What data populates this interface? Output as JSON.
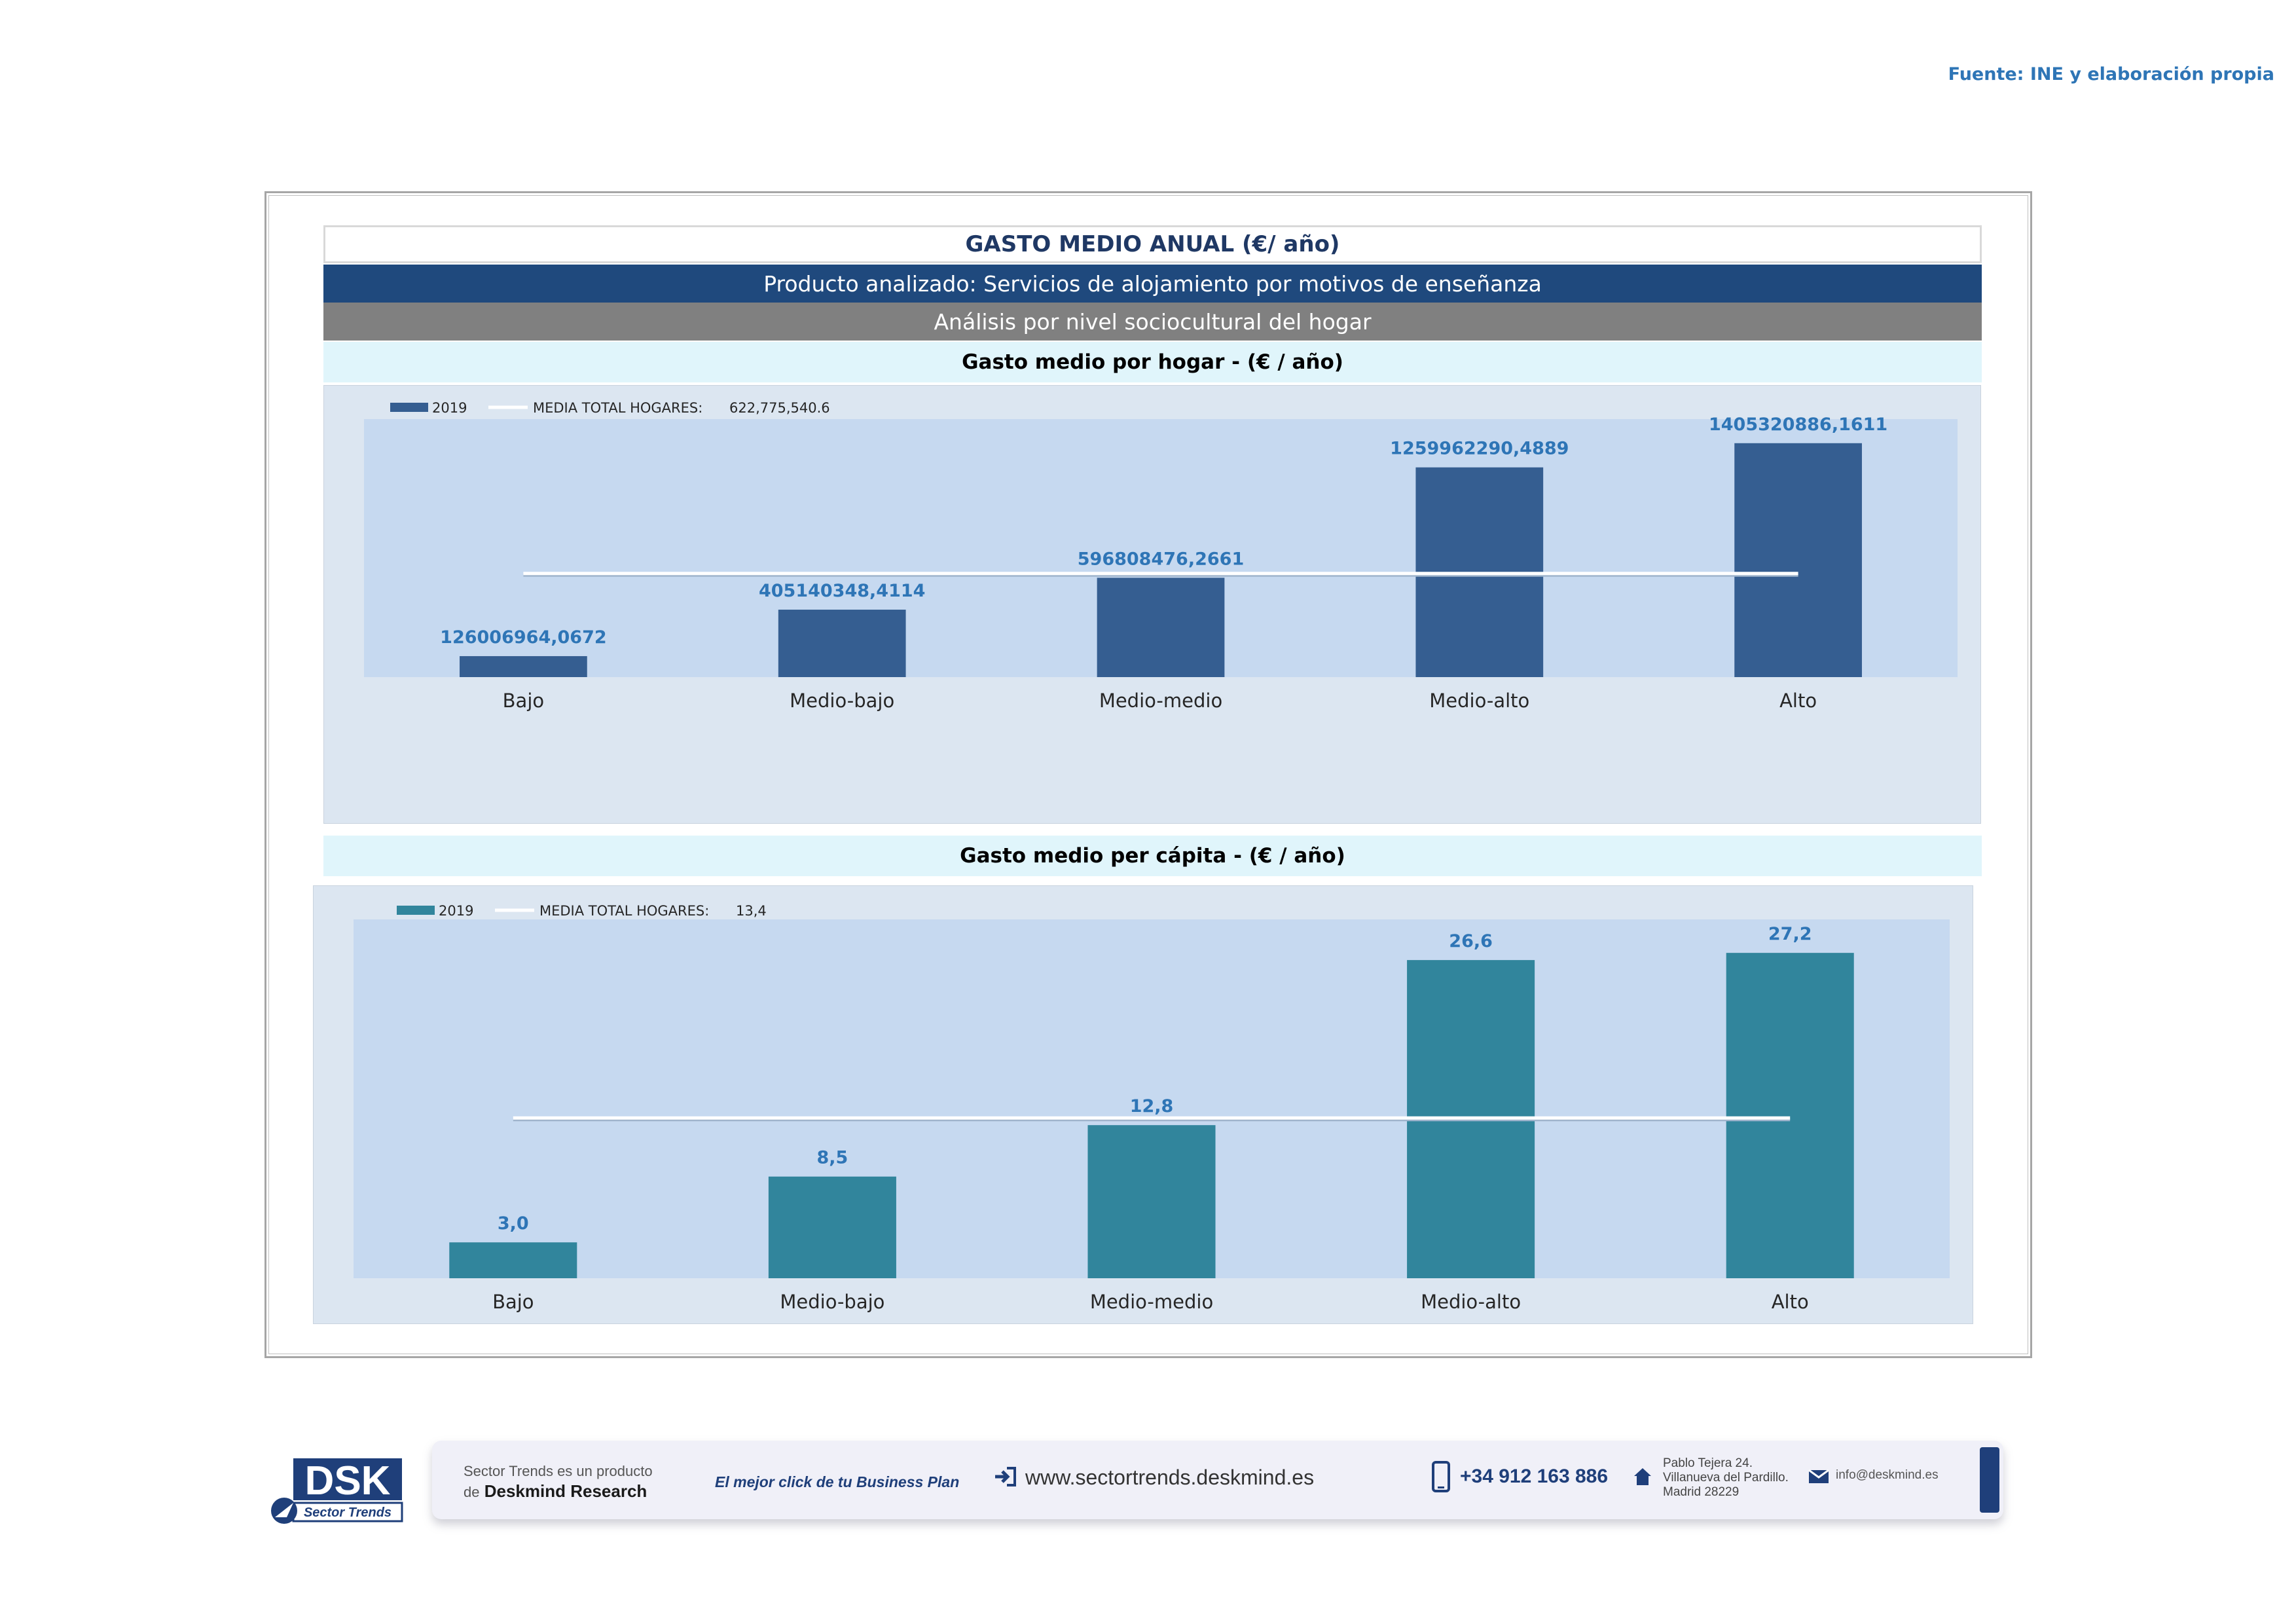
{
  "source": "Fuente: INE y elaboración propia",
  "header": {
    "title": "GASTO MEDIO ANUAL (€/ año)",
    "product": "Producto analizado: Servicios de alojamiento por motivos de enseñanza",
    "analysis": "Análisis por nivel sociocultural del hogar"
  },
  "colors": {
    "dark_navy": "#1f497d",
    "bar_blue": "#355e91",
    "bar_teal": "#31859c",
    "label_blue": "#2e75b6",
    "plot_bg": "#c6d9f0",
    "chart_bg": "#dce6f1",
    "subtitle_bg": "#e0f5fb"
  },
  "chart_data": [
    {
      "type": "bar",
      "subtitle": "Gasto medio por hogar -  (€ / año)",
      "categories": [
        "Bajo",
        "Medio-bajo",
        "Medio-medio",
        "Medio-alto",
        "Alto"
      ],
      "series": [
        {
          "name": "2019",
          "values": [
            126006964.0672,
            405140348.4114,
            596808476.2661,
            1259962290.4889,
            1405320886.1611
          ]
        }
      ],
      "value_labels": [
        "126006964,0672",
        "405140348,4114",
        "596808476,2661",
        "1259962290,4889",
        "1405320886,1611"
      ],
      "reference_line": {
        "name": "MEDIA TOTAL  HOGARES:",
        "value": 622775540.6,
        "label": "622,775,540.6"
      },
      "legend_position": "top-left",
      "grid": false
    },
    {
      "type": "bar",
      "subtitle": "Gasto medio per cápita -  (€ / año)",
      "categories": [
        "Bajo",
        "Medio-bajo",
        "Medio-medio",
        "Medio-alto",
        "Alto"
      ],
      "series": [
        {
          "name": "2019",
          "values": [
            3.0,
            8.5,
            12.8,
            26.6,
            27.2
          ]
        }
      ],
      "value_labels": [
        "3,0",
        "8,5",
        "12,8",
        "26,6",
        "27,2"
      ],
      "reference_line": {
        "name": "MEDIA TOTAL  HOGARES:",
        "value": 13.4,
        "label": "13,4"
      },
      "legend_position": "top-left",
      "grid": false
    }
  ],
  "footer": {
    "logo_text": "DSK",
    "logo_sub": "Sector Trends",
    "tagline_1": "Sector Trends es un producto",
    "tagline_2_prefix": "de",
    "tagline_2_brand": "Deskmind Research",
    "slogan": "El mejor click de tu Business Plan",
    "website": "www.sectortrends.deskmind.es",
    "phone": "+34 912 163 886",
    "address_1": "Pablo Tejera 24.",
    "address_2": "Villanueva del Pardillo.",
    "address_3": "Madrid 28229",
    "email": "info@deskmind.es",
    "icons": [
      "login-arrow-icon",
      "phone-icon",
      "house-icon",
      "envelope-icon"
    ]
  }
}
